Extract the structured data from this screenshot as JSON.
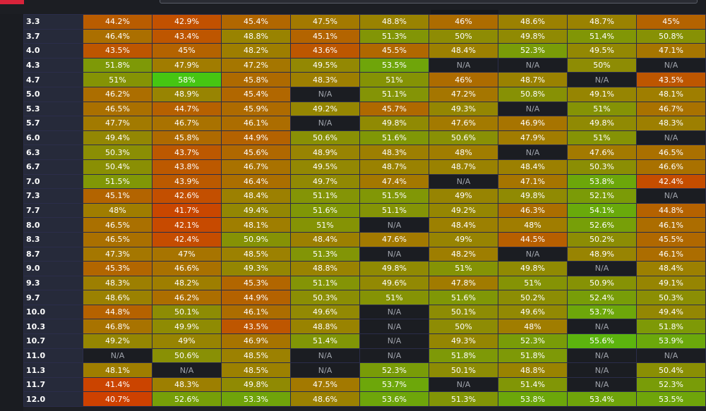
{
  "colors": {
    "low": "#ce4100",
    "mid": "#a07d00",
    "high": "#46c612",
    "na": "#1b1d22"
  },
  "grid": {
    "rows": [
      {
        "label": "3.3",
        "cells": [
          "44.2%",
          "42.9%",
          "45.4%",
          "47.5%",
          "48.8%",
          "46%",
          "48.6%",
          "48.7%",
          "45%"
        ]
      },
      {
        "label": "3.7",
        "cells": [
          "46.4%",
          "43.4%",
          "48.8%",
          "45.1%",
          "51.3%",
          "50%",
          "49.8%",
          "51.4%",
          "50.8%"
        ]
      },
      {
        "label": "4.0",
        "cells": [
          "43.5%",
          "45%",
          "48.2%",
          "43.6%",
          "45.5%",
          "48.4%",
          "52.3%",
          "49.5%",
          "47.1%"
        ]
      },
      {
        "label": "4.3",
        "cells": [
          "51.8%",
          "47.9%",
          "47.2%",
          "49.5%",
          "53.5%",
          "N/A",
          "N/A",
          "50%",
          "N/A"
        ]
      },
      {
        "label": "4.7",
        "cells": [
          "51%",
          "58%",
          "45.8%",
          "48.3%",
          "51%",
          "46%",
          "48.7%",
          "N/A",
          "43.5%"
        ]
      },
      {
        "label": "5.0",
        "cells": [
          "46.2%",
          "48.9%",
          "45.4%",
          "N/A",
          "51.1%",
          "47.2%",
          "50.8%",
          "49.1%",
          "48.1%"
        ]
      },
      {
        "label": "5.3",
        "cells": [
          "46.5%",
          "44.7%",
          "45.9%",
          "49.2%",
          "45.7%",
          "49.3%",
          "N/A",
          "51%",
          "46.7%"
        ]
      },
      {
        "label": "5.7",
        "cells": [
          "47.7%",
          "46.7%",
          "46.1%",
          "N/A",
          "49.8%",
          "47.6%",
          "46.9%",
          "49.8%",
          "48.3%"
        ]
      },
      {
        "label": "6.0",
        "cells": [
          "49.4%",
          "45.8%",
          "44.9%",
          "50.6%",
          "51.6%",
          "50.6%",
          "47.9%",
          "51%",
          "N/A"
        ]
      },
      {
        "label": "6.3",
        "cells": [
          "50.3%",
          "43.7%",
          "45.6%",
          "48.9%",
          "48.3%",
          "48%",
          "N/A",
          "47.6%",
          "46.5%"
        ]
      },
      {
        "label": "6.7",
        "cells": [
          "50.4%",
          "43.8%",
          "46.7%",
          "49.5%",
          "48.7%",
          "48.7%",
          "48.4%",
          "50.3%",
          "46.6%"
        ]
      },
      {
        "label": "7.0",
        "cells": [
          "51.5%",
          "43.9%",
          "46.4%",
          "49.7%",
          "47.4%",
          "N/A",
          "47.1%",
          "53.8%",
          "42.4%"
        ]
      },
      {
        "label": "7.3",
        "cells": [
          "45.1%",
          "42.6%",
          "48.4%",
          "51.1%",
          "51.5%",
          "49%",
          "49.8%",
          "52.1%",
          "N/A"
        ]
      },
      {
        "label": "7.7",
        "cells": [
          "48%",
          "41.7%",
          "49.4%",
          "51.6%",
          "51.1%",
          "49.2%",
          "46.3%",
          "54.1%",
          "44.8%"
        ]
      },
      {
        "label": "8.0",
        "cells": [
          "46.5%",
          "42.1%",
          "48.1%",
          "51%",
          "N/A",
          "48.4%",
          "48%",
          "52.6%",
          "46.1%"
        ]
      },
      {
        "label": "8.3",
        "cells": [
          "46.5%",
          "42.4%",
          "50.9%",
          "48.4%",
          "47.6%",
          "49%",
          "44.5%",
          "50.2%",
          "45.5%"
        ]
      },
      {
        "label": "8.7",
        "cells": [
          "47.3%",
          "47%",
          "48.5%",
          "51.3%",
          "N/A",
          "48.2%",
          "N/A",
          "48.9%",
          "46.1%"
        ]
      },
      {
        "label": "9.0",
        "cells": [
          "45.3%",
          "46.6%",
          "49.3%",
          "48.8%",
          "49.8%",
          "51%",
          "49.8%",
          "N/A",
          "48.4%"
        ]
      },
      {
        "label": "9.3",
        "cells": [
          "48.3%",
          "48.2%",
          "45.3%",
          "51.1%",
          "49.6%",
          "47.8%",
          "51%",
          "50.9%",
          "49.1%"
        ]
      },
      {
        "label": "9.7",
        "cells": [
          "48.6%",
          "46.2%",
          "44.9%",
          "50.3%",
          "51%",
          "51.6%",
          "50.2%",
          "52.4%",
          "50.3%"
        ]
      },
      {
        "label": "10.0",
        "cells": [
          "44.8%",
          "50.1%",
          "46.1%",
          "49.6%",
          "N/A",
          "50.1%",
          "49.6%",
          "53.7%",
          "49.4%"
        ]
      },
      {
        "label": "10.3",
        "cells": [
          "46.8%",
          "49.9%",
          "43.5%",
          "48.8%",
          "N/A",
          "50%",
          "48%",
          "N/A",
          "51.8%"
        ]
      },
      {
        "label": "10.7",
        "cells": [
          "49.2%",
          "49%",
          "46.9%",
          "51.4%",
          "N/A",
          "49.3%",
          "52.3%",
          "55.6%",
          "53.9%"
        ]
      },
      {
        "label": "11.0",
        "cells": [
          "N/A",
          "50.6%",
          "48.5%",
          "N/A",
          "N/A",
          "51.8%",
          "51.8%",
          "N/A",
          "N/A"
        ]
      },
      {
        "label": "11.3",
        "cells": [
          "48.1%",
          "N/A",
          "48.5%",
          "N/A",
          "52.3%",
          "50.1%",
          "48.8%",
          "N/A",
          "50.4%"
        ]
      },
      {
        "label": "11.7",
        "cells": [
          "41.4%",
          "48.3%",
          "49.8%",
          "47.5%",
          "53.7%",
          "N/A",
          "51.4%",
          "N/A",
          "52.3%"
        ]
      },
      {
        "label": "12.0",
        "cells": [
          "40.7%",
          "52.6%",
          "53.3%",
          "48.6%",
          "53.6%",
          "51.3%",
          "53.8%",
          "53.4%",
          "53.5%"
        ]
      }
    ]
  }
}
